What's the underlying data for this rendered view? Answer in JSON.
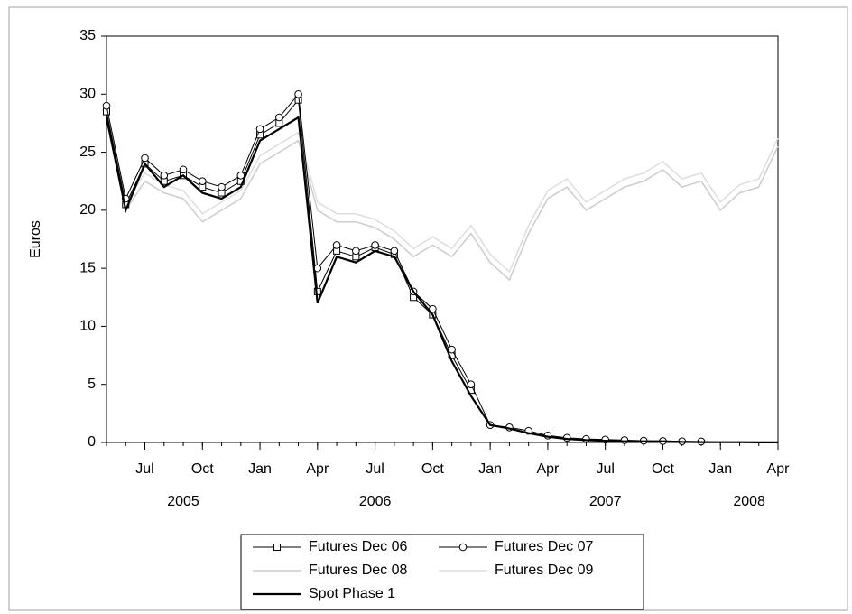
{
  "chart_data": {
    "type": "line",
    "y_label": "Euros",
    "x": [
      "2005-05",
      "2005-06",
      "2005-07",
      "2005-08",
      "2005-09",
      "2005-10",
      "2005-11",
      "2005-12",
      "2006-01",
      "2006-02",
      "2006-03",
      "2006-04",
      "2006-05",
      "2006-06",
      "2006-07",
      "2006-08",
      "2006-09",
      "2006-10",
      "2006-11",
      "2006-12",
      "2007-01",
      "2007-02",
      "2007-03",
      "2007-04",
      "2007-05",
      "2007-06",
      "2007-07",
      "2007-08",
      "2007-09",
      "2007-10",
      "2007-11",
      "2007-12",
      "2008-01",
      "2008-02",
      "2008-03",
      "2008-04"
    ],
    "xlim": [
      "2005-05",
      "2008-04"
    ],
    "xticks": [
      {
        "value": "2005-07",
        "label": "Jul"
      },
      {
        "value": "2005-10",
        "label": "Oct"
      },
      {
        "value": "2006-01",
        "label": "Jan"
      },
      {
        "value": "2006-04",
        "label": "Apr"
      },
      {
        "value": "2006-07",
        "label": "Jul"
      },
      {
        "value": "2006-10",
        "label": "Oct"
      },
      {
        "value": "2007-01",
        "label": "Jan"
      },
      {
        "value": "2007-04",
        "label": "Apr"
      },
      {
        "value": "2007-07",
        "label": "Jul"
      },
      {
        "value": "2007-10",
        "label": "Oct"
      },
      {
        "value": "2008-01",
        "label": "Jan"
      },
      {
        "value": "2008-04",
        "label": "Apr"
      }
    ],
    "year_labels": [
      "2005",
      "2006",
      "2007",
      "2008"
    ],
    "ylim": [
      0,
      35
    ],
    "yticks": [
      0,
      5,
      10,
      15,
      20,
      25,
      30,
      35
    ],
    "series": [
      {
        "name": "Futures Dec 06",
        "color": "#000000",
        "marker": "square",
        "width": 1,
        "values": [
          28.5,
          20.5,
          24,
          22.5,
          23,
          22,
          21.5,
          22.5,
          26.5,
          27.5,
          29.5,
          13,
          16.5,
          16,
          16.8,
          16.2,
          12.5,
          11,
          7.5,
          4.5,
          null,
          null,
          null,
          null,
          null,
          null,
          null,
          null,
          null,
          null,
          null,
          null,
          null,
          null,
          null,
          null
        ]
      },
      {
        "name": "Futures Dec 07",
        "color": "#000000",
        "marker": "circle",
        "width": 1,
        "values": [
          29,
          21,
          24.5,
          23,
          23.5,
          22.5,
          22,
          23,
          27,
          28,
          30,
          15,
          17,
          16.5,
          17,
          16.5,
          13,
          11.5,
          8,
          5,
          1.5,
          1.3,
          1,
          0.6,
          0.4,
          0.3,
          0.25,
          0.2,
          0.15,
          0.12,
          0.1,
          0.08,
          null,
          null,
          null,
          null
        ]
      },
      {
        "name": "Futures Dec 08",
        "color": "#cccccc",
        "marker": null,
        "width": 1.5,
        "values": [
          28,
          20,
          22.5,
          21.5,
          21,
          19,
          20,
          21,
          24,
          25,
          26,
          20,
          19,
          19,
          18.5,
          17.5,
          16,
          17,
          16,
          18,
          15.5,
          14,
          18,
          21,
          22,
          20,
          21,
          22,
          22.5,
          23.5,
          22,
          22.5,
          20,
          21.5,
          22,
          25.5
        ]
      },
      {
        "name": "Futures Dec 09",
        "color": "#dddddd",
        "marker": null,
        "width": 1.5,
        "values": [
          28.7,
          20.7,
          23.2,
          22.2,
          21.7,
          19.7,
          20.7,
          21.7,
          24.7,
          25.7,
          26.7,
          20.7,
          19.7,
          19.7,
          19.2,
          18.2,
          16.7,
          17.7,
          16.7,
          18.7,
          16.2,
          14.7,
          18.7,
          21.7,
          22.7,
          20.7,
          21.7,
          22.7,
          23.2,
          24.2,
          22.7,
          23.2,
          20.7,
          22.2,
          22.7,
          26.2
        ]
      },
      {
        "name": "Spot Phase 1",
        "color": "#000000",
        "marker": null,
        "width": 2.2,
        "values": [
          28,
          20,
          24,
          22,
          23,
          21.5,
          21,
          22,
          26,
          27,
          28,
          12,
          16,
          15.5,
          16.5,
          16,
          13,
          11,
          7,
          4,
          1.5,
          1.2,
          0.8,
          0.5,
          0.3,
          0.2,
          0.15,
          0.1,
          0.1,
          0.1,
          0.05,
          0.03,
          0.02,
          0.02,
          0.01,
          0.01
        ]
      }
    ]
  }
}
